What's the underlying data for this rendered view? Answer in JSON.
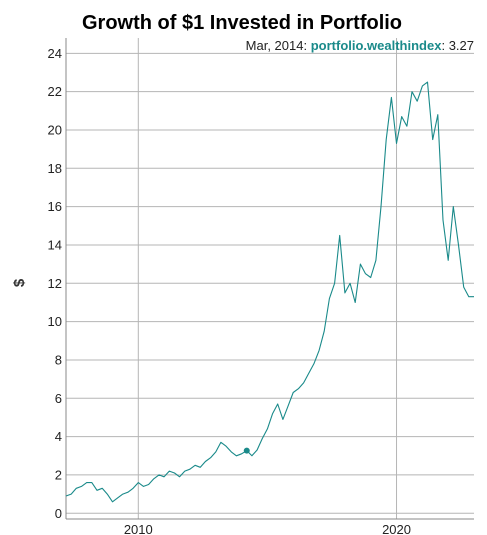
{
  "chart_data": {
    "type": "line",
    "title": "Growth of $1 Invested in Portfolio",
    "ylabel": "$",
    "xlabel": "",
    "xlim": [
      2007.2,
      2023.0
    ],
    "ylim": [
      -0.3,
      24.8
    ],
    "yticks": [
      0,
      2,
      4,
      6,
      8,
      10,
      12,
      14,
      16,
      18,
      20,
      22,
      24
    ],
    "xticks": [
      2010,
      2020
    ],
    "grid": true,
    "color": "#1a8a8a",
    "hover": {
      "date_label": "Mar, 2014",
      "series_name": "portfolio.wealthindex",
      "value_label": "3.27",
      "x": 2014.2,
      "y": 3.27
    },
    "series": [
      {
        "x": [
          2007.2,
          2007.4,
          2007.6,
          2007.8,
          2008.0,
          2008.2,
          2008.4,
          2008.6,
          2008.8,
          2009.0,
          2009.2,
          2009.4,
          2009.6,
          2009.8,
          2010.0,
          2010.2,
          2010.4,
          2010.6,
          2010.8,
          2011.0,
          2011.2,
          2011.4,
          2011.6,
          2011.8,
          2012.0,
          2012.2,
          2012.4,
          2012.6,
          2012.8,
          2013.0,
          2013.2,
          2013.4,
          2013.6,
          2013.8,
          2014.0,
          2014.2,
          2014.4,
          2014.6,
          2014.8,
          2015.0,
          2015.2,
          2015.4,
          2015.6,
          2015.8,
          2016.0,
          2016.2,
          2016.4,
          2016.6,
          2016.8,
          2017.0,
          2017.2,
          2017.4,
          2017.6,
          2017.8,
          2018.0,
          2018.2,
          2018.4,
          2018.6,
          2018.8,
          2019.0,
          2019.2,
          2019.4,
          2019.6,
          2019.8,
          2020.0,
          2020.2,
          2020.4,
          2020.6,
          2020.8,
          2021.0,
          2021.2,
          2021.4,
          2021.6,
          2021.8,
          2022.0,
          2022.2,
          2022.4,
          2022.6,
          2022.8,
          2023.0
        ],
        "values": [
          0.9,
          1.0,
          1.3,
          1.4,
          1.6,
          1.6,
          1.2,
          1.3,
          1.0,
          0.6,
          0.8,
          1.0,
          1.1,
          1.3,
          1.6,
          1.4,
          1.5,
          1.8,
          2.0,
          1.9,
          2.2,
          2.1,
          1.9,
          2.2,
          2.3,
          2.5,
          2.4,
          2.7,
          2.9,
          3.2,
          3.7,
          3.5,
          3.2,
          3.0,
          3.1,
          3.27,
          3.0,
          3.3,
          3.9,
          4.4,
          5.2,
          5.7,
          4.9,
          5.6,
          6.3,
          6.5,
          6.8,
          7.3,
          7.8,
          8.5,
          9.5,
          11.2,
          12.0,
          14.5,
          11.5,
          12.0,
          11.0,
          13.0,
          12.5,
          12.3,
          13.2,
          16.0,
          19.5,
          21.7,
          19.3,
          20.7,
          20.2,
          22.0,
          21.5,
          22.3,
          22.5,
          19.5,
          20.8,
          15.3,
          13.2,
          16.0,
          14.0,
          11.8,
          11.3,
          11.3
        ]
      }
    ]
  }
}
